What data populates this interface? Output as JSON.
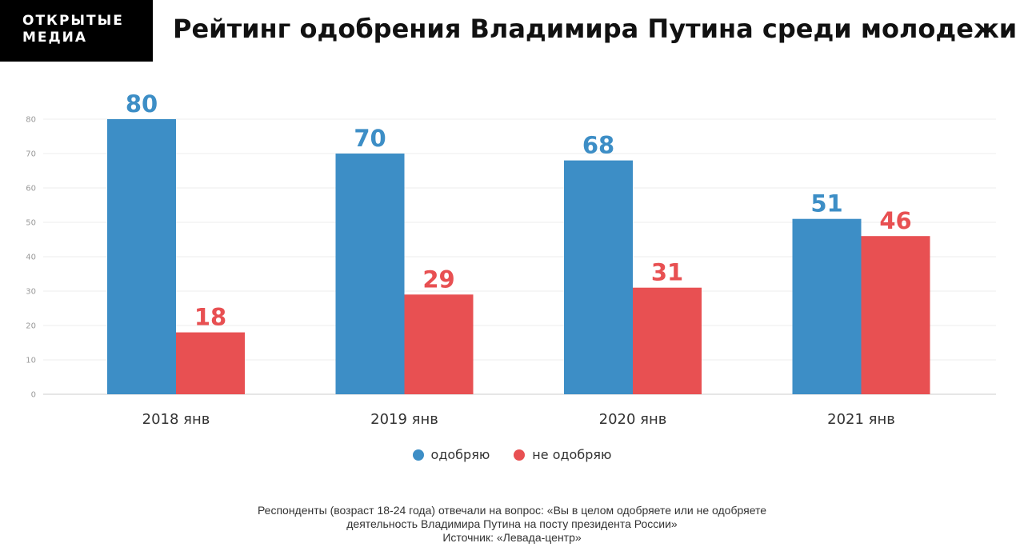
{
  "logo": {
    "line1": "ОТКРЫТЫЕ",
    "line2": "МЕДИА"
  },
  "title": "Рейтинг одобрения Владимира Путина среди молодежи",
  "colors": {
    "approve": "#3d8ec6",
    "disapprove": "#e85052",
    "grid": "#ececec"
  },
  "chart_data": {
    "type": "bar",
    "categories": [
      "2018 янв",
      "2019 янв",
      "2020 янв",
      "2021 янв"
    ],
    "series": [
      {
        "name": "одобряю",
        "values": [
          80,
          70,
          68,
          51
        ]
      },
      {
        "name": "не одобряю",
        "values": [
          18,
          29,
          31,
          46
        ]
      }
    ],
    "yticks": [
      "0",
      "10",
      "20",
      "30",
      "40",
      "50",
      "60",
      "70",
      "80"
    ],
    "ylim": [
      0,
      80
    ],
    "grid": true,
    "legend": "bottom-center"
  },
  "legend": {
    "approve": "одобряю",
    "disapprove": "не одобряю"
  },
  "note": {
    "line1": "Респонденты (возраст 18-24 года) отвечали на вопрос: «Вы в целом одобряете или не одобряете",
    "line2": "деятельность Владимира Путина на посту президента России»",
    "line3": "Источник: «Левада-центр»"
  }
}
